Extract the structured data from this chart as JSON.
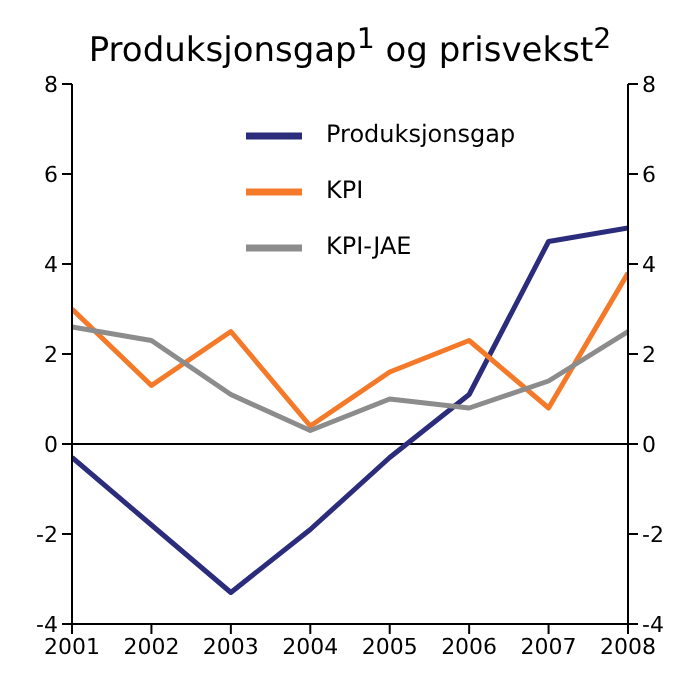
{
  "chart_data": {
    "type": "line",
    "title": "Produksjonsgap$^{1}$ og prisvekst$^{2}$",
    "x": [
      2001,
      2002,
      2003,
      2004,
      2005,
      2006,
      2007,
      2008
    ],
    "series": [
      {
        "name": "Produksjonsgap",
        "color": "#2b2c7c",
        "values": [
          -0.3,
          -1.8,
          -3.3,
          -1.9,
          -0.3,
          1.1,
          4.5,
          4.8
        ]
      },
      {
        "name": "KPI",
        "color": "#f47a2a",
        "values": [
          3.0,
          1.3,
          2.5,
          0.4,
          1.6,
          2.3,
          0.8,
          3.8
        ]
      },
      {
        "name": "KPI-JAE",
        "color": "#8c8c8c",
        "values": [
          2.6,
          2.3,
          1.1,
          0.3,
          1.0,
          0.8,
          1.4,
          2.5
        ]
      }
    ],
    "xlim": [
      2001,
      2008
    ],
    "xticks": [
      2001,
      2002,
      2003,
      2004,
      2005,
      2006,
      2007,
      2008
    ],
    "ylim": [
      -4,
      8
    ],
    "yticks": [
      -4,
      -2,
      0,
      2,
      4,
      6,
      8
    ],
    "y2lim": [
      -4,
      8
    ],
    "y2ticks": [
      -4,
      -2,
      0,
      2,
      4,
      6,
      8
    ],
    "ref_lines": [
      {
        "axis": "y",
        "value": 0
      }
    ],
    "legend": "top right",
    "grid": false,
    "marker": "none",
    "line_style": "solid"
  }
}
